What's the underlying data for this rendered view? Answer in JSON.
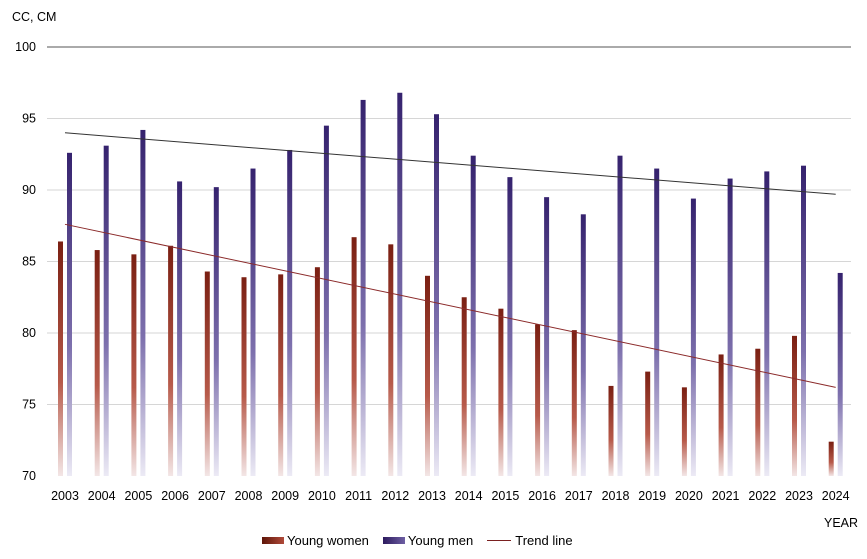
{
  "chart_data": {
    "type": "bar",
    "ylabel": "CC, CM",
    "xlabel": "YEAR",
    "ylim": [
      70,
      100
    ],
    "yticks": [
      70,
      75,
      80,
      85,
      90,
      95,
      100
    ],
    "grid": true,
    "legend_position": "bottom",
    "categories": [
      "2003",
      "2004",
      "2005",
      "2006",
      "2007",
      "2008",
      "2009",
      "2010",
      "2011",
      "2012",
      "2013",
      "2014",
      "2015",
      "2016",
      "2017",
      "2018",
      "2019",
      "2020",
      "2021",
      "2022",
      "2023",
      "2024"
    ],
    "series": [
      {
        "name": "Young women",
        "color": "#7a1f12",
        "values": [
          86.4,
          85.8,
          85.5,
          86.1,
          84.3,
          83.9,
          84.1,
          84.6,
          86.7,
          86.2,
          84.0,
          82.5,
          81.7,
          80.6,
          80.2,
          76.3,
          77.3,
          76.2,
          78.5,
          78.9,
          79.8,
          72.4
        ]
      },
      {
        "name": "Young men",
        "color": "#35226e",
        "values": [
          92.6,
          93.1,
          94.2,
          90.6,
          90.2,
          91.5,
          92.8,
          94.5,
          96.3,
          96.8,
          95.3,
          92.4,
          90.9,
          89.5,
          88.3,
          92.4,
          91.5,
          89.4,
          90.8,
          91.3,
          91.7,
          84.2
        ]
      }
    ],
    "trend_lines": [
      {
        "name": "Trend line",
        "series": "Young men",
        "start_value": 94.0,
        "end_value": 89.7,
        "color": "#333333"
      },
      {
        "name": "Trend line",
        "series": "Young women",
        "start_value": 87.6,
        "end_value": 76.2,
        "color": "#8b2a2a"
      }
    ],
    "legend": [
      "Young women",
      "Young men",
      "Trend line"
    ]
  }
}
